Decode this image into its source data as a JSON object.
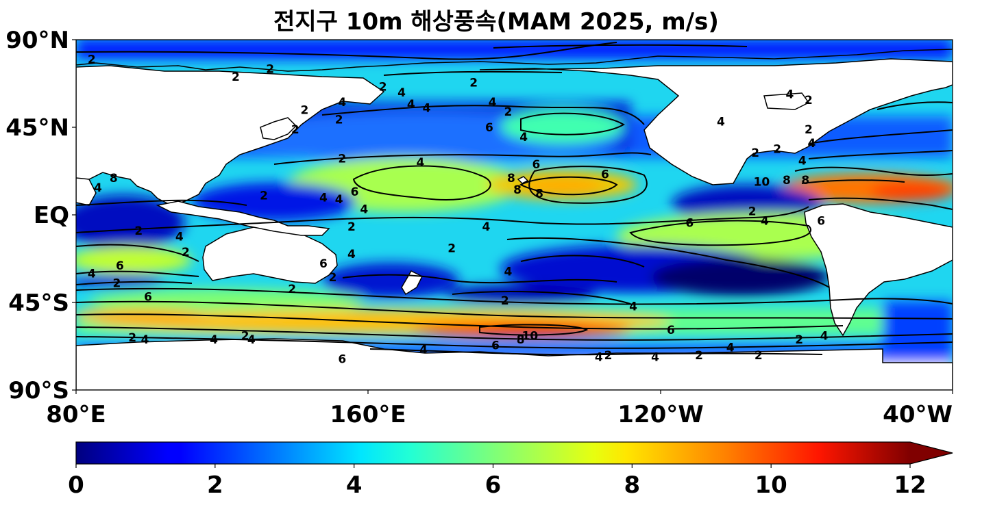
{
  "title": "전지구 10m 해상풍속(MAM 2025, m/s)",
  "map": {
    "projection": "equirectangular",
    "lon_range": "80°E–40°W (Pacific-centred)",
    "lat_range": "90°S–90°N",
    "variable": "10m sea surface wind speed",
    "land_color": "#ffffff",
    "coastline_color": "#000000",
    "y_ticks": [
      "90°N",
      "45°N",
      "EQ",
      "45°S",
      "90°S"
    ],
    "x_ticks": [
      "80°E",
      "160°E",
      "120°W",
      "40°W"
    ],
    "contour_levels": [
      "2",
      "4",
      "6",
      "8",
      "10"
    ],
    "contour_labels": [
      {
        "text": "2",
        "lon": 85,
        "lat": 80
      },
      {
        "text": "2",
        "lon": 131,
        "lat": 71
      },
      {
        "text": "2",
        "lon": 142,
        "lat": 75
      },
      {
        "text": "2",
        "lon": 178,
        "lat": 66
      },
      {
        "text": "2",
        "lon": 207,
        "lat": 68
      },
      {
        "text": "4",
        "lon": 165,
        "lat": 58
      },
      {
        "text": "4",
        "lon": 184,
        "lat": 63
      },
      {
        "text": "4",
        "lon": 187,
        "lat": 57
      },
      {
        "text": "2",
        "lon": 153,
        "lat": 54
      },
      {
        "text": "2",
        "lon": 164,
        "lat": 49
      },
      {
        "text": "4",
        "lon": 192,
        "lat": 55
      },
      {
        "text": "2",
        "lon": 218,
        "lat": 53
      },
      {
        "text": "4",
        "lon": 213,
        "lat": 58
      },
      {
        "text": "6",
        "lon": 212,
        "lat": 45
      },
      {
        "text": "4",
        "lon": 223,
        "lat": 40
      },
      {
        "text": "2",
        "lon": 150,
        "lat": 44
      },
      {
        "text": "2",
        "lon": 165,
        "lat": 29
      },
      {
        "text": "4",
        "lon": 190,
        "lat": 27
      },
      {
        "text": "6",
        "lon": 227,
        "lat": 26
      },
      {
        "text": "6",
        "lon": 249,
        "lat": 21
      },
      {
        "text": "6",
        "lon": 169,
        "lat": 12
      },
      {
        "text": "4",
        "lon": 159,
        "lat": 9
      },
      {
        "text": "4",
        "lon": 164,
        "lat": 8
      },
      {
        "text": "8",
        "lon": 219,
        "lat": 19
      },
      {
        "text": "8",
        "lon": 221,
        "lat": 13
      },
      {
        "text": "8",
        "lon": 228,
        "lat": 11
      },
      {
        "text": "4",
        "lon": 87,
        "lat": 14
      },
      {
        "text": "8",
        "lon": 92,
        "lat": 19
      },
      {
        "text": "2",
        "lon": 140,
        "lat": 10
      },
      {
        "text": "4",
        "lon": 172,
        "lat": 3
      },
      {
        "text": "2",
        "lon": 100,
        "lat": -8
      },
      {
        "text": "4",
        "lon": 113,
        "lat": -11
      },
      {
        "text": "2",
        "lon": 168,
        "lat": -6
      },
      {
        "text": "4",
        "lon": 211,
        "lat": -6
      },
      {
        "text": "6",
        "lon": 276,
        "lat": -4
      },
      {
        "text": "4",
        "lon": 300,
        "lat": -3
      },
      {
        "text": "2",
        "lon": 296,
        "lat": 2
      },
      {
        "text": "2",
        "lon": 200,
        "lat": -17
      },
      {
        "text": "4",
        "lon": 168,
        "lat": -20
      },
      {
        "text": "6",
        "lon": 159,
        "lat": -25
      },
      {
        "text": "6",
        "lon": 94,
        "lat": -26
      },
      {
        "text": "4",
        "lon": 85,
        "lat": -30
      },
      {
        "text": "2",
        "lon": 115,
        "lat": -19
      },
      {
        "text": "2",
        "lon": 93,
        "lat": -35
      },
      {
        "text": "4",
        "lon": 218,
        "lat": -29
      },
      {
        "text": "2",
        "lon": 162,
        "lat": -32
      },
      {
        "text": "2",
        "lon": 149,
        "lat": -38
      },
      {
        "text": "2",
        "lon": 217,
        "lat": -44
      },
      {
        "text": "4",
        "lon": 258,
        "lat": -47
      },
      {
        "text": "6",
        "lon": 103,
        "lat": -42
      },
      {
        "text": "6",
        "lon": 270,
        "lat": -59
      },
      {
        "text": "8",
        "lon": 222,
        "lat": -64
      },
      {
        "text": "10",
        "lon": 225,
        "lat": -62
      },
      {
        "text": "6",
        "lon": 214,
        "lat": -67
      },
      {
        "text": "4",
        "lon": 191,
        "lat": -69
      },
      {
        "text": "4",
        "lon": 247,
        "lat": -73
      },
      {
        "text": "2",
        "lon": 250,
        "lat": -72
      },
      {
        "text": "4",
        "lon": 136,
        "lat": -64
      },
      {
        "text": "4",
        "lon": 124,
        "lat": -64
      },
      {
        "text": "4",
        "lon": 102,
        "lat": -64
      },
      {
        "text": "2",
        "lon": 98,
        "lat": -63
      },
      {
        "text": "2",
        "lon": 134,
        "lat": -62
      },
      {
        "text": "4",
        "lon": 265,
        "lat": -73
      },
      {
        "text": "6",
        "lon": 165,
        "lat": -74
      },
      {
        "text": "4",
        "lon": 289,
        "lat": -68
      },
      {
        "text": "2",
        "lon": 279,
        "lat": -72
      },
      {
        "text": "2",
        "lon": 298,
        "lat": -72
      },
      {
        "text": "4",
        "lon": 319,
        "lat": -62
      },
      {
        "text": "2",
        "lon": 311,
        "lat": -64
      },
      {
        "text": "6",
        "lon": 318,
        "lat": -3
      },
      {
        "text": "8",
        "lon": 313,
        "lat": 18
      },
      {
        "text": "8",
        "lon": 307,
        "lat": 18
      },
      {
        "text": "10",
        "lon": 299,
        "lat": 17
      },
      {
        "text": "4",
        "lon": 312,
        "lat": 28
      },
      {
        "text": "4",
        "lon": 315,
        "lat": 37
      },
      {
        "text": "2",
        "lon": 304,
        "lat": 34
      },
      {
        "text": "2",
        "lon": 314,
        "lat": 44
      },
      {
        "text": "2",
        "lon": 297,
        "lat": 32
      },
      {
        "text": "2",
        "lon": 314,
        "lat": 59
      },
      {
        "text": "4",
        "lon": 286,
        "lat": 48
      },
      {
        "text": "4",
        "lon": 308,
        "lat": 62
      }
    ]
  },
  "colorbar": {
    "ticks": [
      "0",
      "2",
      "4",
      "6",
      "8",
      "10",
      "12"
    ],
    "extend": "max",
    "colormap": "jet"
  }
}
